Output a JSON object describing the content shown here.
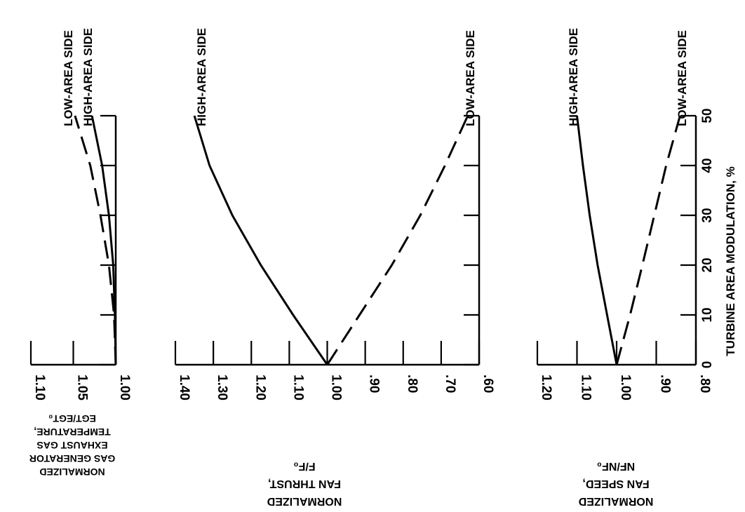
{
  "chart_data": [
    {
      "type": "line",
      "panel": "gas-generator-egt",
      "xlabel": [
        "NORMALIZED",
        "GAS GENERATOR",
        "EXHAUST GAS",
        "TEMPERATURE,",
        "EGT/EGT₀"
      ],
      "xlabel_orientation": "upside-down",
      "x_ticks": [
        "1.10",
        "1.05",
        "1.00"
      ],
      "xlim": [
        1.1,
        1.0
      ],
      "ylabel": "TURBINE AREA MODULATION, %",
      "y_ticks": [
        "0",
        "10",
        "20",
        "30",
        "40",
        "50"
      ],
      "ylim": [
        0,
        50
      ],
      "orientation": "rotated-90",
      "series": [
        {
          "name": "LOW-AREA SIDE",
          "style": "dashed",
          "points": [
            [
              1.0,
              0
            ],
            [
              1.002,
              10
            ],
            [
              1.008,
              20
            ],
            [
              1.018,
              30
            ],
            [
              1.03,
              40
            ],
            [
              1.048,
              50
            ]
          ]
        },
        {
          "name": "HIGH-AREA SIDE",
          "style": "solid",
          "points": [
            [
              1.0,
              0
            ],
            [
              1.001,
              10
            ],
            [
              1.003,
              20
            ],
            [
              1.008,
              30
            ],
            [
              1.016,
              40
            ],
            [
              1.028,
              50
            ]
          ]
        }
      ]
    },
    {
      "type": "line",
      "panel": "fan-thrust",
      "xlabel": [
        "NORMALIZED",
        "FAN THRUST,",
        "F/F₀"
      ],
      "xlabel_orientation": "upside-down",
      "x_ticks": [
        "1.40",
        "1.30",
        "1.20",
        "1.10",
        "1.00",
        ".90",
        ".80",
        ".70",
        ".60"
      ],
      "xlim": [
        1.4,
        0.6
      ],
      "ylabel": "TURBINE AREA MODULATION, %",
      "y_ticks": [
        "0",
        "10",
        "20",
        "30",
        "40",
        "50"
      ],
      "ylim": [
        0,
        50
      ],
      "orientation": "rotated-90",
      "series": [
        {
          "name": "HIGH-AREA SIDE",
          "style": "solid",
          "points": [
            [
              1.0,
              0
            ],
            [
              1.09,
              10
            ],
            [
              1.175,
              20
            ],
            [
              1.25,
              30
            ],
            [
              1.31,
              40
            ],
            [
              1.35,
              50
            ]
          ]
        },
        {
          "name": "LOW-AREA SIDE",
          "style": "dashed",
          "points": [
            [
              1.0,
              0
            ],
            [
              0.915,
              10
            ],
            [
              0.83,
              20
            ],
            [
              0.755,
              30
            ],
            [
              0.69,
              40
            ],
            [
              0.63,
              50
            ]
          ]
        }
      ]
    },
    {
      "type": "line",
      "panel": "fan-speed",
      "xlabel": [
        "NORMALIZED",
        "FAN SPEED,",
        "NF/NF₀"
      ],
      "xlabel_orientation": "upside-down",
      "x_ticks": [
        "1.20",
        "1.10",
        "1.00",
        ".90",
        ".80"
      ],
      "xlim": [
        1.2,
        0.8
      ],
      "ylabel": "TURBINE AREA MODULATION, %",
      "y_ticks": [
        "0",
        "10",
        "20",
        "30",
        "40",
        "50"
      ],
      "ylim": [
        0,
        50
      ],
      "orientation": "rotated-90",
      "series": [
        {
          "name": "HIGH-AREA SIDE",
          "style": "solid",
          "points": [
            [
              1.0,
              0
            ],
            [
              1.024,
              10
            ],
            [
              1.048,
              20
            ],
            [
              1.068,
              30
            ],
            [
              1.085,
              40
            ],
            [
              1.1,
              50
            ]
          ]
        },
        {
          "name": "LOW-AREA SIDE",
          "style": "dashed",
          "points": [
            [
              1.0,
              0
            ],
            [
              0.966,
              10
            ],
            [
              0.935,
              20
            ],
            [
              0.905,
              30
            ],
            [
              0.875,
              40
            ],
            [
              0.84,
              50
            ]
          ]
        }
      ]
    }
  ]
}
